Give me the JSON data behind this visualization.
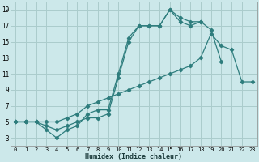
{
  "xlabel": "Humidex (Indice chaleur)",
  "bg_color": "#cce8ea",
  "grid_color": "#aacccc",
  "line_color": "#2e7d7d",
  "xlim": [
    -0.5,
    23.5
  ],
  "ylim": [
    2,
    20
  ],
  "xticks": [
    0,
    1,
    2,
    3,
    4,
    5,
    6,
    7,
    8,
    9,
    10,
    11,
    12,
    13,
    14,
    15,
    16,
    17,
    18,
    19,
    20,
    21,
    22,
    23
  ],
  "yticks": [
    3,
    5,
    7,
    9,
    11,
    13,
    15,
    17,
    19
  ],
  "line1_x": [
    0,
    1,
    2,
    3,
    4,
    5,
    6,
    7,
    8,
    9,
    10,
    11,
    12,
    13,
    14,
    15,
    16,
    17,
    18
  ],
  "line1_y": [
    5,
    5,
    5,
    4,
    3,
    4,
    4.5,
    6,
    6.5,
    6.5,
    11,
    15.5,
    17,
    17,
    17,
    19,
    17.5,
    17,
    17.5
  ],
  "line2_x": [
    0,
    1,
    2,
    3,
    4,
    5,
    6,
    7,
    8,
    9,
    10,
    11,
    12,
    13,
    14,
    15,
    16,
    17,
    18,
    19,
    20
  ],
  "line2_y": [
    5,
    5,
    5,
    4.5,
    4,
    4.5,
    5,
    5.5,
    5.5,
    6,
    10.5,
    15,
    17,
    17,
    17,
    19,
    18,
    17.5,
    17.5,
    16.5,
    12.5
  ],
  "line3_x": [
    0,
    1,
    2,
    3,
    4,
    5,
    6,
    7,
    8,
    9,
    10,
    11,
    12,
    13,
    14,
    15,
    16,
    17,
    18,
    19,
    20,
    21,
    22,
    23
  ],
  "line3_y": [
    5,
    5,
    5,
    5,
    5,
    5.5,
    6,
    7,
    7.5,
    8,
    8.5,
    9,
    9.5,
    10,
    10.5,
    11,
    11.5,
    12,
    13,
    16,
    14.5,
    14,
    10,
    10
  ]
}
